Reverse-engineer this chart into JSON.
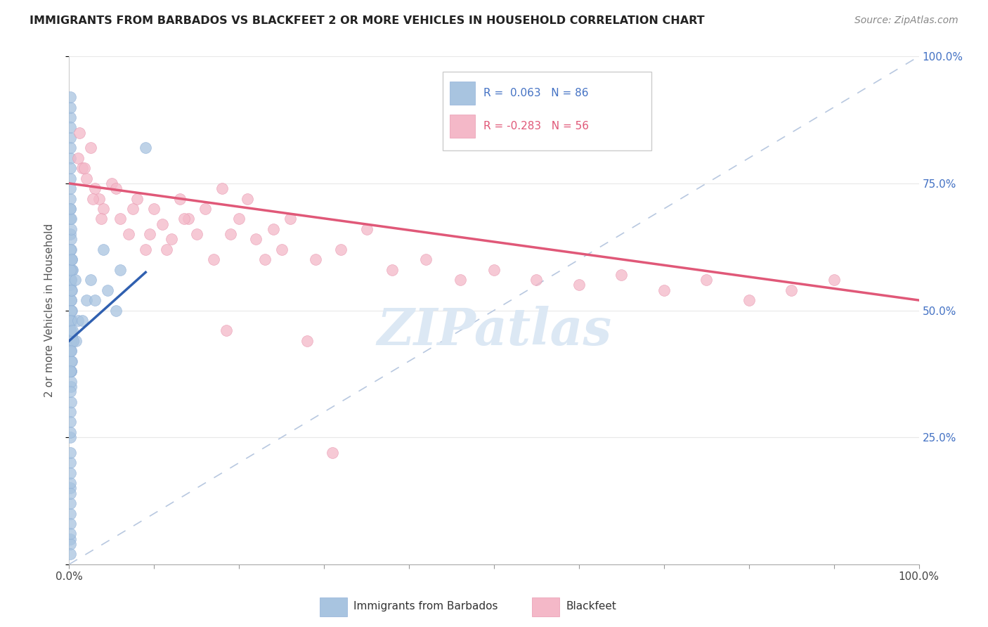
{
  "title": "IMMIGRANTS FROM BARBADOS VS BLACKFEET 2 OR MORE VEHICLES IN HOUSEHOLD CORRELATION CHART",
  "source": "Source: ZipAtlas.com",
  "ylabel": "2 or more Vehicles in Household",
  "blue_R": 0.063,
  "blue_N": 86,
  "pink_R": -0.283,
  "pink_N": 56,
  "blue_label": "Immigrants from Barbados",
  "pink_label": "Blackfeet",
  "blue_color": "#a8c4e0",
  "pink_color": "#f4b8c8",
  "blue_edge_color": "#90b0d8",
  "pink_edge_color": "#e898b0",
  "blue_trend_color": "#3060b0",
  "pink_trend_color": "#e05878",
  "diag_line_color": "#b8c8e0",
  "bg_color": "#ffffff",
  "grid_color": "#e8e8e8",
  "watermark_color": "#dce8f4",
  "right_tick_color": "#4472c4",
  "ylabel_color": "#555555",
  "title_color": "#222222",
  "source_color": "#888888",
  "blue_x": [
    0.002,
    0.003,
    0.004,
    0.001,
    0.002,
    0.003,
    0.001,
    0.002,
    0.003,
    0.001,
    0.002,
    0.001,
    0.003,
    0.001,
    0.002,
    0.001,
    0.002,
    0.003,
    0.001,
    0.002,
    0.001,
    0.002,
    0.001,
    0.003,
    0.002,
    0.001,
    0.002,
    0.001,
    0.003,
    0.002,
    0.001,
    0.002,
    0.001,
    0.002,
    0.001,
    0.003,
    0.001,
    0.002,
    0.001,
    0.002,
    0.001,
    0.002,
    0.001,
    0.001,
    0.002,
    0.001,
    0.002,
    0.001,
    0.001,
    0.002,
    0.001,
    0.001,
    0.002,
    0.001,
    0.001,
    0.002,
    0.001,
    0.001,
    0.001,
    0.001,
    0.001,
    0.001,
    0.001,
    0.001,
    0.001,
    0.001,
    0.001,
    0.001,
    0.001,
    0.001,
    0.025,
    0.04,
    0.055,
    0.02,
    0.01,
    0.008,
    0.06,
    0.045,
    0.03,
    0.015,
    0.005,
    0.007,
    0.003,
    0.002,
    0.09,
    0.004
  ],
  "blue_y": [
    0.52,
    0.48,
    0.58,
    0.42,
    0.38,
    0.5,
    0.55,
    0.6,
    0.45,
    0.65,
    0.35,
    0.68,
    0.4,
    0.3,
    0.56,
    0.25,
    0.62,
    0.44,
    0.7,
    0.36,
    0.46,
    0.52,
    0.2,
    0.58,
    0.64,
    0.15,
    0.48,
    0.72,
    0.54,
    0.42,
    0.1,
    0.66,
    0.08,
    0.56,
    0.05,
    0.6,
    0.76,
    0.38,
    0.8,
    0.32,
    0.12,
    0.44,
    0.84,
    0.04,
    0.68,
    0.16,
    0.5,
    0.88,
    0.06,
    0.4,
    0.02,
    0.74,
    0.46,
    0.18,
    0.82,
    0.54,
    0.22,
    0.78,
    0.28,
    0.86,
    0.34,
    0.9,
    0.26,
    0.7,
    0.14,
    0.62,
    0.58,
    0.48,
    0.38,
    0.92,
    0.56,
    0.62,
    0.5,
    0.52,
    0.48,
    0.44,
    0.58,
    0.54,
    0.52,
    0.48,
    0.44,
    0.56,
    0.6,
    0.42,
    0.82,
    0.46
  ],
  "pink_x": [
    0.01,
    0.015,
    0.02,
    0.025,
    0.03,
    0.035,
    0.04,
    0.05,
    0.06,
    0.07,
    0.08,
    0.09,
    0.1,
    0.11,
    0.12,
    0.13,
    0.14,
    0.15,
    0.16,
    0.17,
    0.18,
    0.19,
    0.2,
    0.21,
    0.22,
    0.23,
    0.24,
    0.25,
    0.26,
    0.29,
    0.32,
    0.35,
    0.38,
    0.42,
    0.46,
    0.5,
    0.55,
    0.6,
    0.65,
    0.7,
    0.75,
    0.8,
    0.85,
    0.9,
    0.012,
    0.018,
    0.028,
    0.038,
    0.055,
    0.075,
    0.095,
    0.115,
    0.135,
    0.185,
    0.28,
    0.31
  ],
  "pink_y": [
    0.8,
    0.78,
    0.76,
    0.82,
    0.74,
    0.72,
    0.7,
    0.75,
    0.68,
    0.65,
    0.72,
    0.62,
    0.7,
    0.67,
    0.64,
    0.72,
    0.68,
    0.65,
    0.7,
    0.6,
    0.74,
    0.65,
    0.68,
    0.72,
    0.64,
    0.6,
    0.66,
    0.62,
    0.68,
    0.6,
    0.62,
    0.66,
    0.58,
    0.6,
    0.56,
    0.58,
    0.56,
    0.55,
    0.57,
    0.54,
    0.56,
    0.52,
    0.54,
    0.56,
    0.85,
    0.78,
    0.72,
    0.68,
    0.74,
    0.7,
    0.65,
    0.62,
    0.68,
    0.46,
    0.44,
    0.22
  ]
}
